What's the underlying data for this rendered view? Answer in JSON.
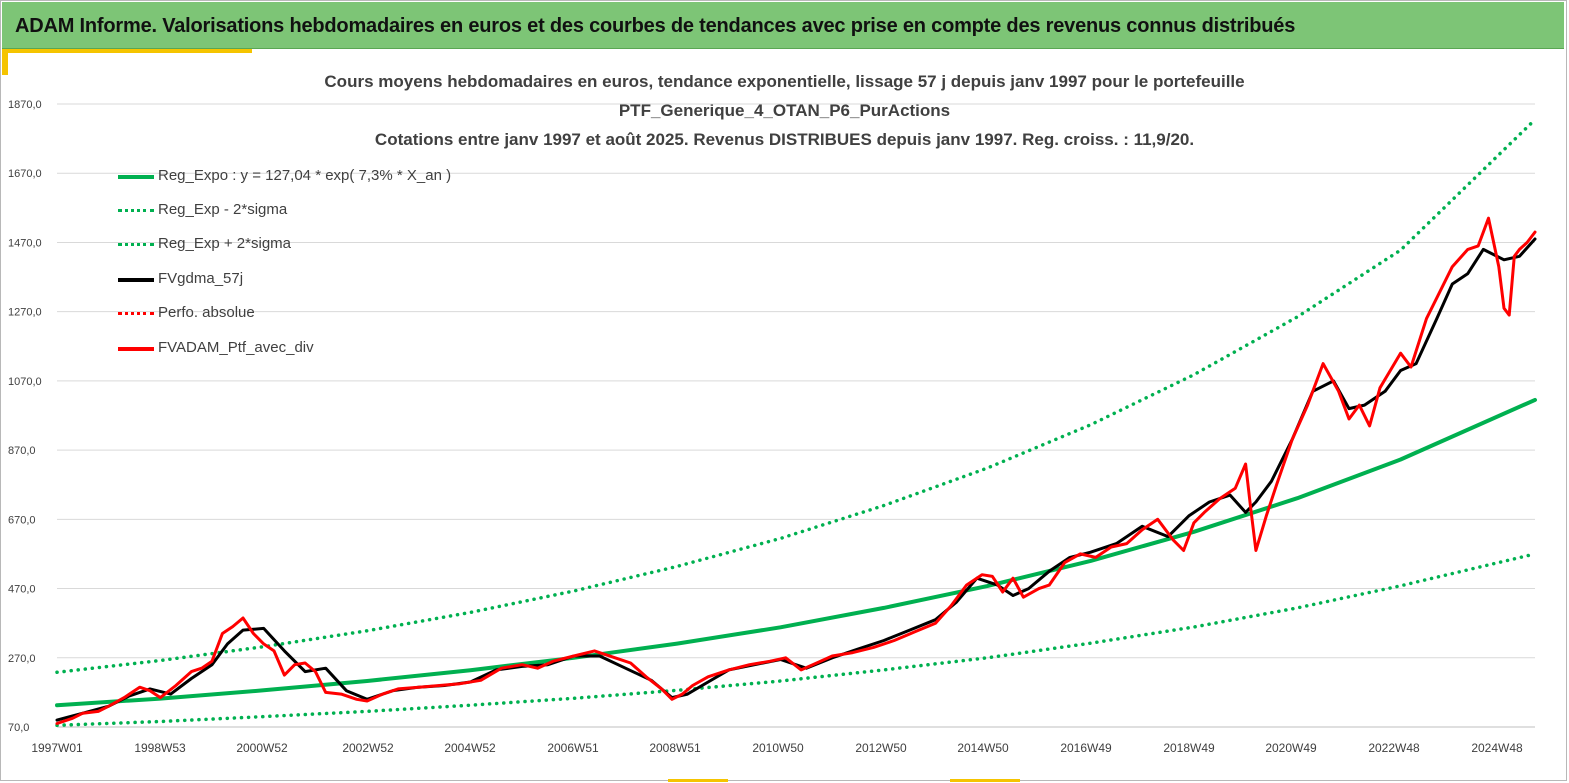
{
  "banner": {
    "title": "ADAM Informe. Valorisations hebdomadaires en euros et des courbes de tendances avec prise en compte des revenus connus distribués",
    "background": "#7dc576"
  },
  "colors": {
    "regression": "#00b050",
    "smoothed": "#000000",
    "portfolio": "#ff0000",
    "accent": "#f5c400",
    "grid": "#d9d9d9"
  },
  "chart_data": {
    "type": "line",
    "title": "Cours moyens hebdomadaires  en euros, tendance exponentielle, lissage 57 j depuis janv 1997 pour le portefeuille",
    "subtitle": "PTF_Generique_4_OTAN_P6_PurActions",
    "subtitle2": "Cotations  entre janv 1997 et août 2025. Revenus DISTRIBUES depuis janv 1997. Reg. croiss. : 11,9/20.",
    "xlabel": "",
    "ylabel": "",
    "ylim": [
      70,
      1870
    ],
    "y_ticks": [
      "70,0",
      "270,0",
      "470,0",
      "670,0",
      "870,0",
      "1070,0",
      "1270,0",
      "1470,0",
      "1670,0",
      "1870,0"
    ],
    "x_ticks": [
      "1997W01",
      "1998W53",
      "2000W52",
      "2002W52",
      "2004W52",
      "2006W51",
      "2008W51",
      "2010W50",
      "2012W50",
      "2014W50",
      "2016W49",
      "2018W49",
      "2020W49",
      "2022W48",
      "2024W48"
    ],
    "x_range_years": [
      1997.0,
      2025.6
    ],
    "grid": "horizontal",
    "legend_position": "top-left",
    "series": [
      {
        "name": "Reg_Expo : y = 127,04 * exp( 7,3% *  X_an )",
        "style": "solid",
        "color": "#00b050",
        "x": [
          1997.0,
          1999.0,
          2001.0,
          2003.0,
          2005.0,
          2007.0,
          2009.0,
          2011.0,
          2013.0,
          2015.0,
          2017.0,
          2019.0,
          2021.0,
          2023.0,
          2025.6
        ],
        "values": [
          133,
          152,
          176,
          203,
          234,
          270,
          311,
          358,
          414,
          477,
          550,
          634,
          731,
          843,
          1015
        ]
      },
      {
        "name": "Reg_Exp - 2*sigma",
        "style": "dotted",
        "color": "#00b050",
        "x": [
          1997.0,
          1999.0,
          2001.0,
          2003.0,
          2005.0,
          2007.0,
          2009.0,
          2011.0,
          2013.0,
          2015.0,
          2017.0,
          2019.0,
          2021.0,
          2023.0,
          2025.6
        ],
        "values": [
          75,
          86,
          100,
          115,
          133,
          153,
          176,
          203,
          235,
          270,
          312,
          359,
          414,
          478,
          570
        ]
      },
      {
        "name": "Reg_Exp + 2*sigma",
        "style": "dotted",
        "color": "#00b050",
        "x": [
          1997.0,
          1999.0,
          2001.0,
          2003.0,
          2005.0,
          2007.0,
          2009.0,
          2011.0,
          2013.0,
          2015.0,
          2017.0,
          2019.0,
          2021.0,
          2023.0,
          2025.6
        ],
        "values": [
          228,
          262,
          302,
          348,
          401,
          463,
          534,
          615,
          710,
          818,
          943,
          1088,
          1255,
          1448,
          1825
        ]
      },
      {
        "name": "FVgdma_57j",
        "style": "solid",
        "color": "#000000",
        "x": [
          1997.0,
          1997.5,
          1998.0,
          1998.4,
          1998.8,
          1999.2,
          1999.6,
          2000.0,
          2000.3,
          2000.6,
          2001.0,
          2001.4,
          2001.8,
          2002.2,
          2002.6,
          2003.0,
          2003.5,
          2004.0,
          2004.5,
          2005.0,
          2005.5,
          2006.0,
          2006.5,
          2007.0,
          2007.5,
          2008.0,
          2008.5,
          2008.9,
          2009.2,
          2009.6,
          2010.0,
          2010.5,
          2011.0,
          2011.5,
          2012.0,
          2012.5,
          2013.0,
          2013.5,
          2014.0,
          2014.4,
          2014.8,
          2015.2,
          2015.5,
          2015.8,
          2016.2,
          2016.6,
          2017.0,
          2017.5,
          2018.0,
          2018.5,
          2018.9,
          2019.3,
          2019.7,
          2020.0,
          2020.2,
          2020.5,
          2020.9,
          2021.3,
          2021.7,
          2022.0,
          2022.3,
          2022.7,
          2023.0,
          2023.3,
          2023.7,
          2024.0,
          2024.3,
          2024.6,
          2025.0,
          2025.3,
          2025.6
        ],
        "values": [
          90,
          110,
          130,
          160,
          180,
          165,
          210,
          250,
          310,
          350,
          355,
          290,
          230,
          240,
          175,
          150,
          175,
          185,
          190,
          200,
          235,
          245,
          250,
          275,
          275,
          240,
          205,
          155,
          165,
          200,
          235,
          250,
          265,
          240,
          270,
          295,
          320,
          350,
          380,
          430,
          500,
          480,
          450,
          470,
          520,
          560,
          575,
          600,
          650,
          620,
          680,
          720,
          740,
          690,
          720,
          780,
          900,
          1040,
          1070,
          990,
          1000,
          1040,
          1100,
          1120,
          1250,
          1350,
          1380,
          1450,
          1420,
          1430,
          1480
        ]
      },
      {
        "name": "Perfo. absolue",
        "style": "dotted",
        "color": "#ff0000",
        "x": [],
        "values": []
      },
      {
        "name": "FVADAM_Ptf_avec_div",
        "style": "solid",
        "color": "#ff0000",
        "x": [
          1997.0,
          1997.3,
          1997.5,
          1997.8,
          1998.0,
          1998.3,
          1998.6,
          1998.8,
          1999.0,
          1999.3,
          1999.6,
          1999.8,
          2000.0,
          2000.2,
          2000.4,
          2000.6,
          2000.8,
          2001.0,
          2001.2,
          2001.4,
          2001.6,
          2001.8,
          2002.0,
          2002.2,
          2002.5,
          2002.8,
          2003.0,
          2003.3,
          2003.6,
          2004.0,
          2004.4,
          2004.8,
          2005.2,
          2005.6,
          2006.0,
          2006.3,
          2006.6,
          2007.0,
          2007.4,
          2007.8,
          2008.1,
          2008.4,
          2008.7,
          2008.9,
          2009.1,
          2009.3,
          2009.6,
          2010.0,
          2010.4,
          2010.8,
          2011.1,
          2011.4,
          2011.7,
          2012.0,
          2012.4,
          2012.8,
          2013.2,
          2013.6,
          2014.0,
          2014.3,
          2014.6,
          2014.9,
          2015.1,
          2015.3,
          2015.5,
          2015.7,
          2016.0,
          2016.2,
          2016.5,
          2016.8,
          2017.1,
          2017.4,
          2017.7,
          2018.0,
          2018.3,
          2018.6,
          2018.8,
          2019.0,
          2019.2,
          2019.5,
          2019.8,
          2020.0,
          2020.1,
          2020.2,
          2020.4,
          2020.6,
          2020.9,
          2021.2,
          2021.5,
          2021.8,
          2022.0,
          2022.2,
          2022.4,
          2022.6,
          2022.8,
          2023.0,
          2023.2,
          2023.5,
          2023.8,
          2024.0,
          2024.3,
          2024.5,
          2024.7,
          2024.9,
          2025.0,
          2025.1,
          2025.2,
          2025.3,
          2025.45,
          2025.6
        ],
        "values": [
          80,
          95,
          110,
          115,
          130,
          155,
          185,
          175,
          155,
          190,
          230,
          240,
          260,
          340,
          360,
          385,
          340,
          310,
          290,
          220,
          250,
          255,
          230,
          170,
          165,
          150,
          145,
          165,
          180,
          185,
          190,
          195,
          205,
          240,
          250,
          240,
          260,
          275,
          290,
          270,
          255,
          215,
          180,
          150,
          165,
          190,
          215,
          235,
          250,
          260,
          270,
          235,
          255,
          275,
          285,
          300,
          320,
          345,
          370,
          420,
          480,
          510,
          505,
          460,
          500,
          445,
          470,
          480,
          545,
          570,
          560,
          590,
          600,
          640,
          670,
          610,
          580,
          660,
          690,
          730,
          760,
          830,
          700,
          580,
          680,
          770,
          900,
          1000,
          1120,
          1040,
          960,
          1000,
          940,
          1050,
          1100,
          1150,
          1110,
          1250,
          1340,
          1400,
          1450,
          1460,
          1540,
          1400,
          1280,
          1260,
          1430,
          1450,
          1470,
          1500
        ]
      }
    ]
  }
}
